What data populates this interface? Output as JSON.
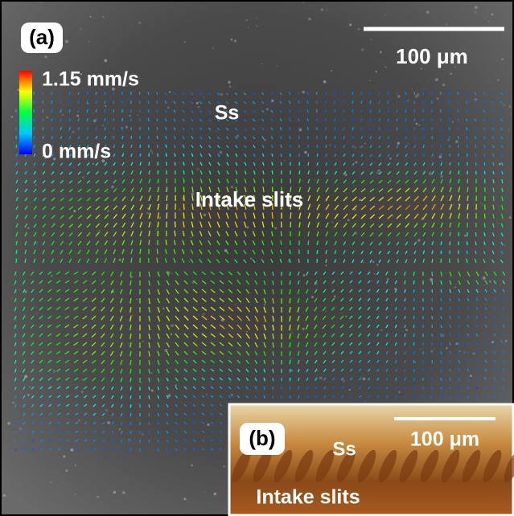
{
  "panel_a": {
    "label": "(a)",
    "scale_bar": "100 μm",
    "colorbar": {
      "max_label": "1.15 mm/s",
      "min_label": "0 mm/s"
    },
    "annotations": [
      "Ss",
      "Intake slits"
    ]
  },
  "panel_b": {
    "label": "(b)",
    "scale_bar": "100 μm",
    "annotations": [
      "Ss",
      "Intake slits"
    ]
  }
}
